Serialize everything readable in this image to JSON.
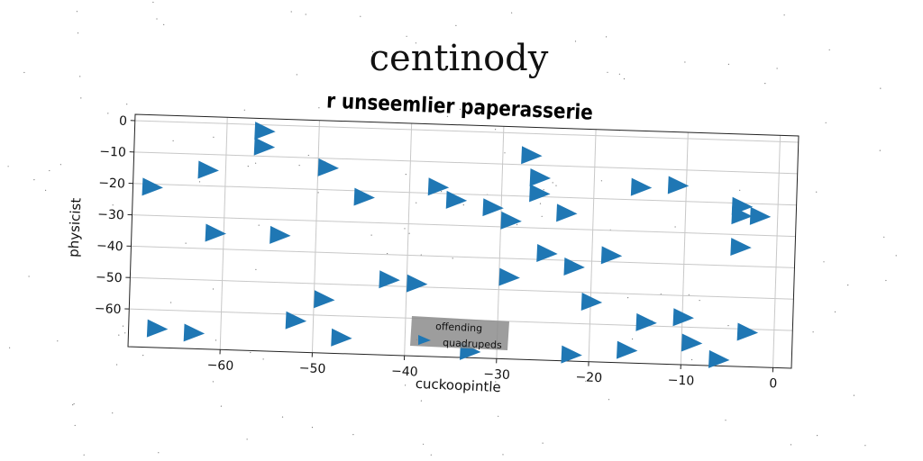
{
  "chart_data": {
    "type": "scatter",
    "suptitle": "centinody",
    "title": "r unseemlier paperasserie",
    "xlabel": "cuckoopintle",
    "ylabel": "physicist",
    "xlim": [
      -70,
      2
    ],
    "ylim": [
      -72,
      2
    ],
    "xticks": [
      -60,
      -50,
      -40,
      -30,
      -20,
      -10,
      0
    ],
    "yticks": [
      0,
      -10,
      -20,
      -30,
      -40,
      -50,
      -60
    ],
    "grid": true,
    "legend_position": "lower center",
    "marker": "triangle-right",
    "color": "#1f77b4",
    "series": [
      {
        "name": "offending quadrupeds",
        "points": [
          [
            -56,
            -2
          ],
          [
            -56,
            -7
          ],
          [
            -62,
            -15
          ],
          [
            -68,
            -21
          ],
          [
            -49,
            -13
          ],
          [
            -45,
            -22
          ],
          [
            -37,
            -18
          ],
          [
            -35,
            -22
          ],
          [
            -31,
            -24
          ],
          [
            -29,
            -28
          ],
          [
            -27,
            -7
          ],
          [
            -26,
            -14
          ],
          [
            -26,
            -19
          ],
          [
            -23,
            -25
          ],
          [
            -15,
            -16
          ],
          [
            -11,
            -15
          ],
          [
            -4,
            -21
          ],
          [
            -4,
            -24
          ],
          [
            -2,
            -24
          ],
          [
            -4,
            -34
          ],
          [
            -61,
            -35
          ],
          [
            -54,
            -35
          ],
          [
            -42,
            -48
          ],
          [
            -39,
            -49
          ],
          [
            -29,
            -46
          ],
          [
            -25,
            -38
          ],
          [
            -22,
            -42
          ],
          [
            -18,
            -38
          ],
          [
            -20,
            -53
          ],
          [
            -14,
            -59
          ],
          [
            -10,
            -57
          ],
          [
            -9,
            -65
          ],
          [
            -3,
            -61
          ],
          [
            -6,
            -70
          ],
          [
            -16,
            -68
          ],
          [
            -22,
            -70
          ],
          [
            -67,
            -66
          ],
          [
            -63,
            -67
          ],
          [
            -52,
            -62
          ],
          [
            -49,
            -55
          ],
          [
            -47,
            -67
          ],
          [
            -33,
            -70
          ]
        ]
      }
    ]
  }
}
